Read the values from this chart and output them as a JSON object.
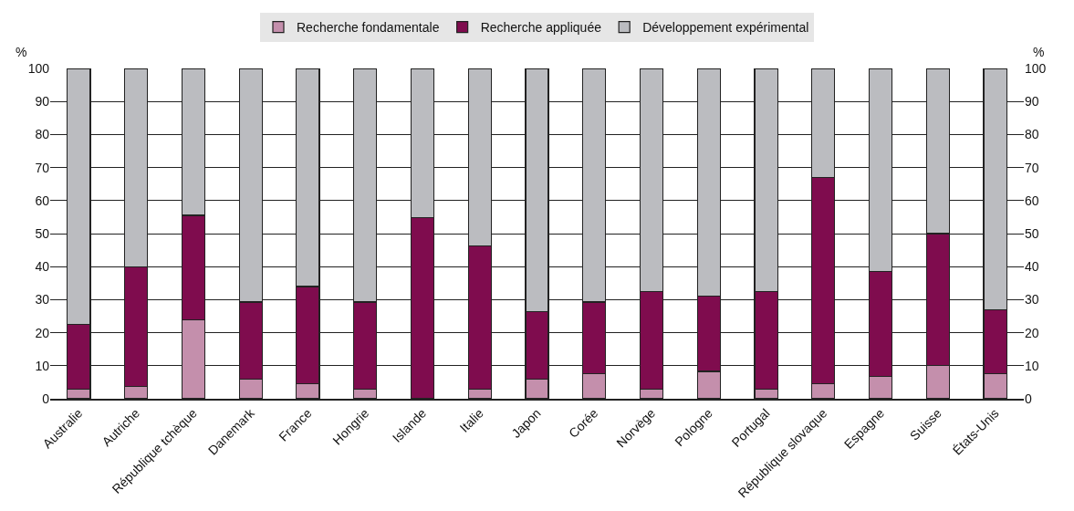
{
  "chart_data": {
    "type": "bar",
    "stacked": true,
    "categories": [
      "Australie",
      "Autriche",
      "République tchèque",
      "Danemark",
      "France",
      "Hongrie",
      "Islande",
      "Italie",
      "Japon",
      "Corée",
      "Norvège",
      "Pologne",
      "Portugal",
      "République slovaque",
      "Espagne",
      "Suisse",
      "États-Unis"
    ],
    "series": [
      {
        "name": "Recherche fondamentale",
        "color": "#c48fac",
        "values": [
          3,
          3.8,
          24,
          6,
          4.5,
          3,
          0,
          3,
          6,
          7.5,
          3,
          8.3,
          3,
          4.5,
          6.8,
          10,
          7.5
        ]
      },
      {
        "name": "Recherche appliquée",
        "color": "#7f0c4e",
        "values": [
          19.5,
          36.2,
          31.5,
          23.3,
          29.5,
          26.3,
          54.8,
          43.3,
          20.3,
          21.8,
          29.5,
          22.7,
          29.5,
          62.5,
          31.7,
          40,
          19.5
        ]
      },
      {
        "name": "Développement expérimental",
        "color": "#bbbcc0",
        "values": [
          77.5,
          60,
          44.5,
          70.7,
          66,
          70.7,
          45.2,
          53.7,
          73.7,
          70.7,
          67.5,
          69,
          67.5,
          33,
          61.5,
          50,
          73
        ]
      }
    ],
    "ylabel": "%",
    "y2label": "%",
    "ylim": [
      0,
      100
    ],
    "yticks": [
      0,
      10,
      20,
      30,
      40,
      50,
      60,
      70,
      80,
      90,
      100
    ],
    "y2lim": [
      0,
      100
    ],
    "y2ticks": [
      0,
      10,
      20,
      30,
      40,
      50,
      60,
      70,
      80,
      90,
      100
    ],
    "grid": "y",
    "legend": "top"
  }
}
